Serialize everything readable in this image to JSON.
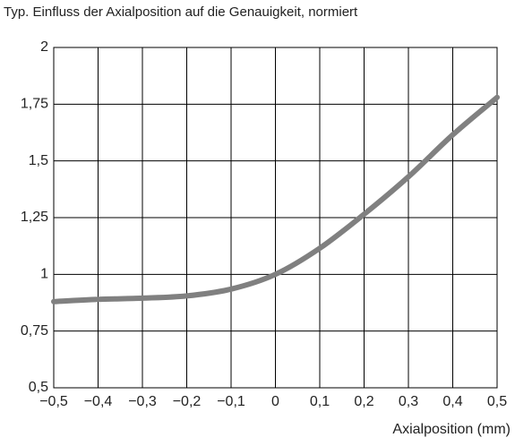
{
  "chart_data": {
    "type": "line",
    "title": "Typ. Einfluss der Axialposition auf die Genauigkeit, normiert",
    "x_label": "Axialposition (mm)",
    "x": [
      -0.5,
      -0.4,
      -0.3,
      -0.2,
      -0.1,
      0,
      0.1,
      0.2,
      0.3,
      0.4,
      0.5
    ],
    "series": [
      {
        "name": null,
        "color": "#808080",
        "values": [
          0.88,
          0.89,
          0.895,
          0.905,
          0.935,
          1.0,
          1.115,
          1.265,
          1.43,
          1.615,
          1.78
        ]
      }
    ],
    "xlim": [
      -0.5,
      0.5
    ],
    "xticks": [
      {
        "value": -0.5,
        "label": "−0,5"
      },
      {
        "value": -0.4,
        "label": "−0,4"
      },
      {
        "value": -0.3,
        "label": "−0,3"
      },
      {
        "value": -0.2,
        "label": "−0,2"
      },
      {
        "value": -0.1,
        "label": "−0,1"
      },
      0,
      {
        "value": 0.1,
        "label": "0,1"
      },
      {
        "value": 0.2,
        "label": "0,2"
      },
      {
        "value": 0.3,
        "label": "0,3"
      },
      {
        "value": 0.4,
        "label": "0,4"
      },
      {
        "value": 0.5,
        "label": "0,5"
      }
    ],
    "ylim": [
      0.5,
      2
    ],
    "yticks": [
      {
        "value": 0.5,
        "label": "0,5"
      },
      {
        "value": 0.75,
        "label": "0,75"
      },
      1,
      {
        "value": 1.25,
        "label": "1,25"
      },
      {
        "value": 1.5,
        "label": "1,5"
      },
      {
        "value": 1.75,
        "label": "1,75"
      },
      2
    ],
    "grid": true
  }
}
